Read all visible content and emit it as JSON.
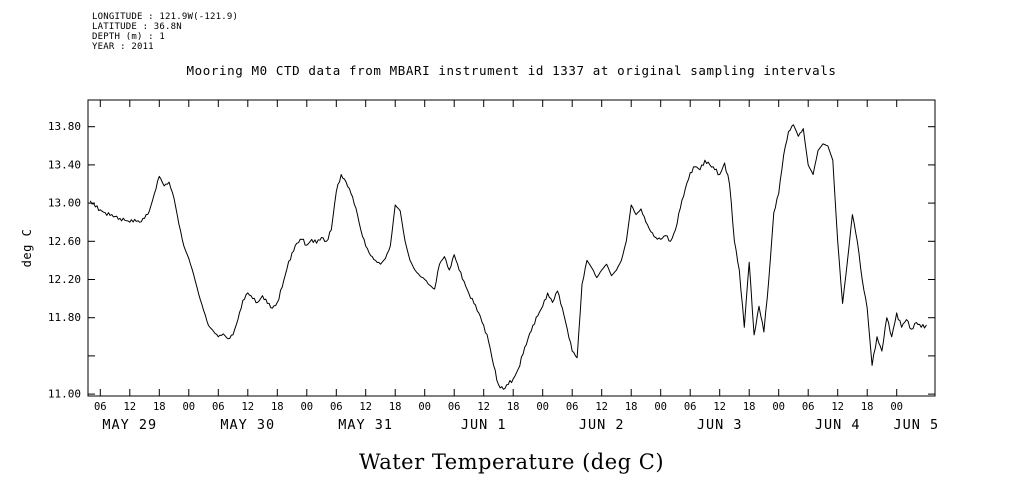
{
  "metadata": {
    "lines": [
      "LONGITUDE : 121.9W(-121.9)",
      "LATITUDE : 36.8N",
      "DEPTH (m) : 1",
      "YEAR : 2011"
    ]
  },
  "chart_data": {
    "type": "line",
    "title": "Mooring M0 CTD data from MBARI instrument id 1337 at original sampling intervals",
    "ylabel": "deg C",
    "xlabel": "Water Temperature (deg C)",
    "line_color": "#000000",
    "grid": false,
    "ylim": [
      10.98,
      14.08
    ],
    "xlim_hours": [
      3.5,
      175.8
    ],
    "y_axis": {
      "tick_values": [
        11.0,
        11.4,
        11.8,
        12.2,
        12.6,
        13.0,
        13.4,
        13.8
      ],
      "tick_labels": [
        "11.00",
        "",
        "11.80",
        "12.20",
        "12.60",
        "13.00",
        "13.40",
        "13.80"
      ]
    },
    "x_axis": {
      "tick_hours": [
        6,
        12,
        18,
        24,
        30,
        36,
        42,
        48,
        54,
        60,
        66,
        72,
        78,
        84,
        90,
        96,
        102,
        108,
        114,
        120,
        126,
        132,
        138,
        144,
        150,
        156,
        162,
        168
      ],
      "tick_labels": [
        "06",
        "12",
        "18",
        "00",
        "06",
        "12",
        "18",
        "00",
        "06",
        "12",
        "18",
        "00",
        "06",
        "12",
        "18",
        "00",
        "06",
        "12",
        "18",
        "00",
        "06",
        "12",
        "18",
        "00",
        "06",
        "12",
        "18",
        "00"
      ],
      "date_labels": [
        {
          "label": "MAY 29",
          "hour": 12
        },
        {
          "label": "MAY 30",
          "hour": 36
        },
        {
          "label": "MAY 31",
          "hour": 60
        },
        {
          "label": "JUN 1",
          "hour": 84
        },
        {
          "label": "JUN 2",
          "hour": 108
        },
        {
          "label": "JUN 3",
          "hour": 132
        },
        {
          "label": "JUN 4",
          "hour": 156
        },
        {
          "label": "JUN 5",
          "hour": 172
        }
      ]
    },
    "series": [
      {
        "name": "water temperature (deg C)",
        "start_hour_since_may29_0000": 4,
        "step_hours": 1,
        "values": [
          13.02,
          12.96,
          12.93,
          12.9,
          12.87,
          12.86,
          12.84,
          12.82,
          12.8,
          12.83,
          12.8,
          12.84,
          12.92,
          13.1,
          13.28,
          13.18,
          13.22,
          13.05,
          12.78,
          12.55,
          12.42,
          12.25,
          12.05,
          11.88,
          11.72,
          11.66,
          11.6,
          11.63,
          11.58,
          11.62,
          11.78,
          11.98,
          12.06,
          12.0,
          11.96,
          12.03,
          11.95,
          11.9,
          11.96,
          12.12,
          12.32,
          12.48,
          12.58,
          12.62,
          12.56,
          12.62,
          12.58,
          12.64,
          12.6,
          12.72,
          13.12,
          13.3,
          13.22,
          13.1,
          12.95,
          12.72,
          12.55,
          12.45,
          12.4,
          12.36,
          12.42,
          12.55,
          12.98,
          12.92,
          12.6,
          12.4,
          12.3,
          12.24,
          12.2,
          12.14,
          12.1,
          12.36,
          12.44,
          12.3,
          12.46,
          12.3,
          12.18,
          12.05,
          11.95,
          11.85,
          11.72,
          11.55,
          11.3,
          11.1,
          11.05,
          11.1,
          11.16,
          11.26,
          11.42,
          11.58,
          11.72,
          11.82,
          11.92,
          12.06,
          11.96,
          12.08,
          11.9,
          11.68,
          11.45,
          11.38,
          12.15,
          12.4,
          12.32,
          12.22,
          12.3,
          12.36,
          12.24,
          12.3,
          12.4,
          12.6,
          12.98,
          12.88,
          12.94,
          12.8,
          12.7,
          12.64,
          12.62,
          12.66,
          12.6,
          12.72,
          12.95,
          13.15,
          13.32,
          13.38,
          13.35,
          13.45,
          13.4,
          13.35,
          13.3,
          13.42,
          13.2,
          12.6,
          12.3,
          11.7,
          12.38,
          11.62,
          11.92,
          11.65,
          12.2,
          12.9,
          13.1,
          13.5,
          13.75,
          13.82,
          13.7,
          13.78,
          13.4,
          13.3,
          13.55,
          13.62,
          13.6,
          13.45,
          12.6,
          11.95,
          12.4,
          12.88,
          12.6,
          12.2,
          11.9,
          11.3,
          11.6,
          11.45,
          11.8,
          11.6,
          11.85,
          11.7,
          11.78,
          11.68,
          11.75,
          11.7,
          11.72
        ]
      }
    ]
  }
}
